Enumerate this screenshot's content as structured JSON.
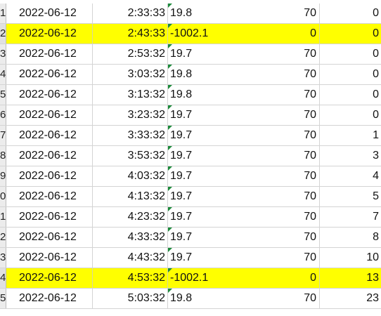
{
  "spreadsheet": {
    "rows": [
      {
        "num": "1",
        "date": "2022-06-12",
        "time": "2:33:33",
        "value": "19.8",
        "n1": "70",
        "n2": "0",
        "highlight": false
      },
      {
        "num": "2",
        "date": "2022-06-12",
        "time": "2:43:33",
        "value": "-1002.1",
        "n1": "0",
        "n2": "0",
        "highlight": true
      },
      {
        "num": "3",
        "date": "2022-06-12",
        "time": "2:53:32",
        "value": "19.7",
        "n1": "70",
        "n2": "0",
        "highlight": false
      },
      {
        "num": "4",
        "date": "2022-06-12",
        "time": "3:03:32",
        "value": "19.8",
        "n1": "70",
        "n2": "0",
        "highlight": false
      },
      {
        "num": "5",
        "date": "2022-06-12",
        "time": "3:13:32",
        "value": "19.8",
        "n1": "70",
        "n2": "0",
        "highlight": false
      },
      {
        "num": "6",
        "date": "2022-06-12",
        "time": "3:23:32",
        "value": "19.7",
        "n1": "70",
        "n2": "0",
        "highlight": false
      },
      {
        "num": "7",
        "date": "2022-06-12",
        "time": "3:33:32",
        "value": "19.7",
        "n1": "70",
        "n2": "1",
        "highlight": false
      },
      {
        "num": "8",
        "date": "2022-06-12",
        "time": "3:53:32",
        "value": "19.7",
        "n1": "70",
        "n2": "3",
        "highlight": false
      },
      {
        "num": "9",
        "date": "2022-06-12",
        "time": "4:03:32",
        "value": "19.7",
        "n1": "70",
        "n2": "4",
        "highlight": false
      },
      {
        "num": "0",
        "date": "2022-06-12",
        "time": "4:13:32",
        "value": "19.7",
        "n1": "70",
        "n2": "5",
        "highlight": false
      },
      {
        "num": "1",
        "date": "2022-06-12",
        "time": "4:23:32",
        "value": "19.7",
        "n1": "70",
        "n2": "7",
        "highlight": false
      },
      {
        "num": "2",
        "date": "2022-06-12",
        "time": "4:33:32",
        "value": "19.7",
        "n1": "70",
        "n2": "8",
        "highlight": false
      },
      {
        "num": "3",
        "date": "2022-06-12",
        "time": "4:43:32",
        "value": "19.7",
        "n1": "70",
        "n2": "10",
        "highlight": false
      },
      {
        "num": "4",
        "date": "2022-06-12",
        "time": "4:53:32",
        "value": "-1002.1",
        "n1": "0",
        "n2": "13",
        "highlight": true
      },
      {
        "num": "5",
        "date": "2022-06-12",
        "time": "5:03:32",
        "value": "19.8",
        "n1": "70",
        "n2": "23",
        "highlight": false
      }
    ],
    "colors": {
      "highlight": "#ffff00",
      "gridline": "#d4d4d4",
      "error_indicator": "#1b8a3a"
    }
  }
}
